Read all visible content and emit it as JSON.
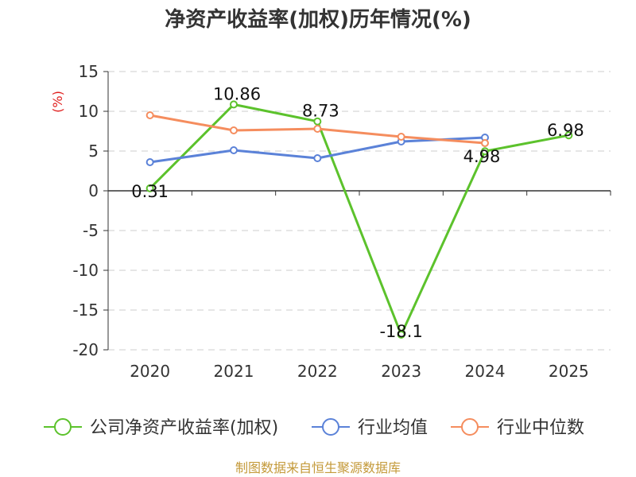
{
  "chart_data": {
    "type": "line",
    "title": "净资产收益率(加权)历年情况(%)",
    "ylabel": "(%)",
    "categories": [
      "2020",
      "2021",
      "2022",
      "2023",
      "2024",
      "2025"
    ],
    "ylim": [
      -20,
      15
    ],
    "yticks": [
      15,
      10,
      5,
      0,
      -5,
      -10,
      -15,
      -20
    ],
    "grid": true,
    "legend_position": "bottom",
    "series": [
      {
        "name": "公司净资产收益率(加权)",
        "color": "#5cc22c",
        "values": [
          0.31,
          10.86,
          8.73,
          -18.1,
          4.98,
          6.98
        ],
        "labels": [
          "0.31",
          "10.86",
          "8.73",
          "-18.1",
          "4.98",
          "6.98"
        ]
      },
      {
        "name": "行业均值",
        "color": "#5b82d8",
        "values": [
          3.6,
          5.1,
          4.1,
          6.2,
          6.7,
          null
        ]
      },
      {
        "name": "行业中位数",
        "color": "#f58d5e",
        "values": [
          9.5,
          7.6,
          7.8,
          6.8,
          6.0,
          null
        ]
      }
    ]
  },
  "source": "制图数据来自恒生聚源数据库"
}
